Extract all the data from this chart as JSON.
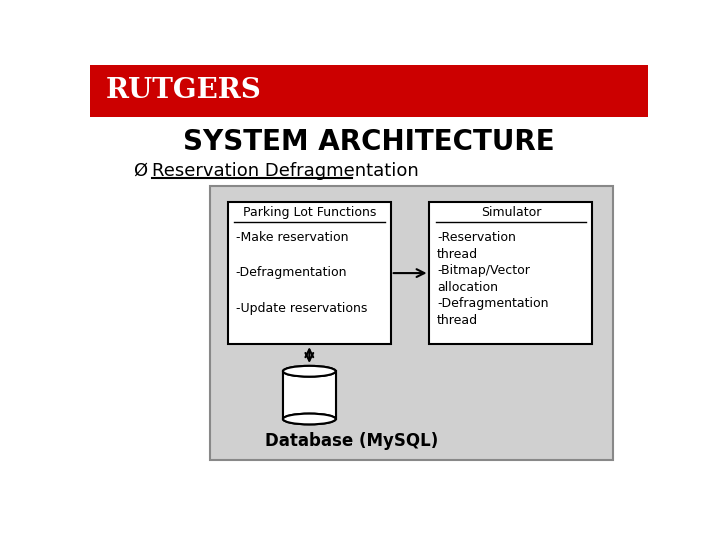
{
  "title": "SYSTEM ARCHITECTURE",
  "subtitle": "Reservation Defragmentation",
  "rutgers": "RUTGERS",
  "header_color": "#cc0000",
  "bg_color": "#ffffff",
  "diagram_bg": "#d0d0d0",
  "box1_title": "Parking Lot Functions",
  "box1_items": [
    "-Make reservation",
    "-Defragmentation",
    "-Update reservations"
  ],
  "box2_title": "Simulator",
  "box2_text": "-Reservation\nthread\n-Bitmap/Vector\nallocation\n-Defragmentation\nthread",
  "db_label": "Database (MySQL)"
}
